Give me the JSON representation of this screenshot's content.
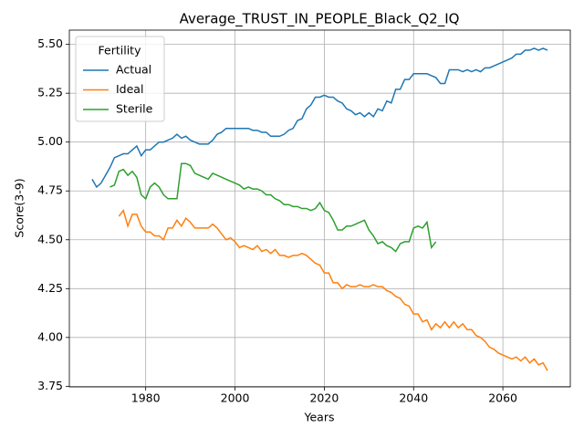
{
  "chart_data": {
    "type": "line",
    "title": "Average_TRUST_IN_PEOPLE_Black_Q2_IQ",
    "x_label": "Years",
    "y_label": "Score(3-9)",
    "legend_title": "Fertility",
    "legend_position": "upper left",
    "grid": true,
    "xlim": [
      1962.9,
      2075.1
    ],
    "ylim": [
      3.747,
      5.573
    ],
    "xticks": [
      1980,
      2000,
      2020,
      2040,
      2060
    ],
    "yticks": [
      3.75,
      {
        "value": 4.0,
        "label": "4.00"
      },
      4.25,
      {
        "value": 4.5,
        "label": "4.50"
      },
      4.75,
      {
        "value": 5.0,
        "label": "5.00"
      },
      5.25,
      {
        "value": 5.5,
        "label": "5.50"
      }
    ],
    "x": [
      1968,
      1969,
      1970,
      1971,
      1972,
      1973,
      1974,
      1975,
      1976,
      1977,
      1978,
      1979,
      1980,
      1981,
      1982,
      1983,
      1984,
      1985,
      1986,
      1987,
      1988,
      1989,
      1990,
      1991,
      1992,
      1993,
      1994,
      1995,
      1996,
      1997,
      1998,
      1999,
      2000,
      2001,
      2002,
      2003,
      2004,
      2005,
      2006,
      2007,
      2008,
      2009,
      2010,
      2011,
      2012,
      2013,
      2014,
      2015,
      2016,
      2017,
      2018,
      2019,
      2020,
      2021,
      2022,
      2023,
      2024,
      2025,
      2026,
      2027,
      2028,
      2029,
      2030,
      2031,
      2032,
      2033,
      2034,
      2035,
      2036,
      2037,
      2038,
      2039,
      2040,
      2041,
      2042,
      2043,
      2044,
      2045,
      2046,
      2047,
      2048,
      2049,
      2050,
      2051,
      2052,
      2053,
      2054,
      2055,
      2056,
      2057,
      2058,
      2059,
      2060,
      2061,
      2062,
      2063,
      2064,
      2065,
      2066,
      2067,
      2068,
      2069,
      2070
    ],
    "series": [
      {
        "name": "Actual",
        "color": "#1f77b4",
        "values": [
          4.81,
          4.77,
          4.79,
          4.83,
          4.87,
          4.92,
          4.93,
          4.94,
          4.94,
          4.96,
          4.98,
          4.93,
          4.96,
          4.96,
          4.98,
          5.0,
          5.0,
          5.01,
          5.02,
          5.04,
          5.02,
          5.03,
          5.01,
          5.0,
          4.99,
          4.99,
          4.99,
          5.01,
          5.04,
          5.05,
          5.07,
          5.07,
          5.07,
          5.07,
          5.07,
          5.07,
          5.06,
          5.06,
          5.05,
          5.05,
          5.03,
          5.03,
          5.03,
          5.04,
          5.06,
          5.07,
          5.11,
          5.12,
          5.17,
          5.19,
          5.23,
          5.23,
          5.24,
          5.23,
          5.23,
          5.21,
          5.2,
          5.17,
          5.16,
          5.14,
          5.15,
          5.13,
          5.15,
          5.13,
          5.17,
          5.16,
          5.21,
          5.2,
          5.27,
          5.27,
          5.32,
          5.32,
          5.35,
          5.35,
          5.35,
          5.35,
          5.34,
          5.33,
          5.3,
          5.3,
          5.37,
          5.37,
          5.37,
          5.36,
          5.37,
          5.36,
          5.37,
          5.36,
          5.38,
          5.38,
          5.39,
          5.4,
          5.41,
          5.42,
          5.43,
          5.45,
          5.45,
          5.47,
          5.47,
          5.48,
          5.47,
          5.48,
          5.47
        ]
      },
      {
        "name": "Ideal",
        "color": "#ff7f0e",
        "values": [
          null,
          null,
          null,
          null,
          null,
          null,
          4.62,
          4.65,
          4.57,
          4.63,
          4.63,
          4.57,
          4.54,
          4.54,
          4.52,
          4.52,
          4.5,
          4.56,
          4.56,
          4.6,
          4.57,
          4.61,
          4.59,
          4.56,
          4.56,
          4.56,
          4.56,
          4.58,
          4.56,
          4.53,
          4.5,
          4.51,
          4.49,
          4.46,
          4.47,
          4.46,
          4.45,
          4.47,
          4.44,
          4.45,
          4.43,
          4.45,
          4.42,
          4.42,
          4.41,
          4.42,
          4.42,
          4.43,
          4.42,
          4.4,
          4.38,
          4.37,
          4.33,
          4.33,
          4.28,
          4.28,
          4.25,
          4.27,
          4.26,
          4.26,
          4.27,
          4.26,
          4.26,
          4.27,
          4.26,
          4.26,
          4.24,
          4.23,
          4.21,
          4.2,
          4.17,
          4.16,
          4.12,
          4.12,
          4.08,
          4.09,
          4.04,
          4.07,
          4.05,
          4.08,
          4.05,
          4.08,
          4.05,
          4.07,
          4.04,
          4.04,
          4.01,
          4.0,
          3.98,
          3.95,
          3.94,
          3.92,
          3.91,
          3.9,
          3.89,
          3.9,
          3.88,
          3.9,
          3.87,
          3.89,
          3.86,
          3.87,
          3.83
        ]
      },
      {
        "name": "Sterile",
        "color": "#2ca02c",
        "values": [
          null,
          null,
          null,
          null,
          4.77,
          4.78,
          4.85,
          4.86,
          4.83,
          4.85,
          4.82,
          4.73,
          4.71,
          4.77,
          4.79,
          4.77,
          4.73,
          4.71,
          4.71,
          4.71,
          4.89,
          4.89,
          4.88,
          4.84,
          4.83,
          4.82,
          4.81,
          4.84,
          4.83,
          4.82,
          4.81,
          4.8,
          4.79,
          4.78,
          4.76,
          4.77,
          4.76,
          4.76,
          4.75,
          4.73,
          4.73,
          4.71,
          4.7,
          4.68,
          4.68,
          4.67,
          4.67,
          4.66,
          4.66,
          4.65,
          4.66,
          4.69,
          4.65,
          4.64,
          4.6,
          4.55,
          4.55,
          4.57,
          4.57,
          4.58,
          4.59,
          4.6,
          4.55,
          4.52,
          4.48,
          4.49,
          4.47,
          4.46,
          4.44,
          4.48,
          4.49,
          4.49,
          4.56,
          4.57,
          4.56,
          4.59,
          4.46,
          4.49,
          null,
          null,
          null,
          null,
          null,
          null,
          null,
          null,
          null,
          null,
          null,
          null,
          null,
          null,
          null,
          null,
          null,
          null,
          null,
          null,
          null,
          null,
          null,
          null,
          null
        ]
      }
    ]
  }
}
